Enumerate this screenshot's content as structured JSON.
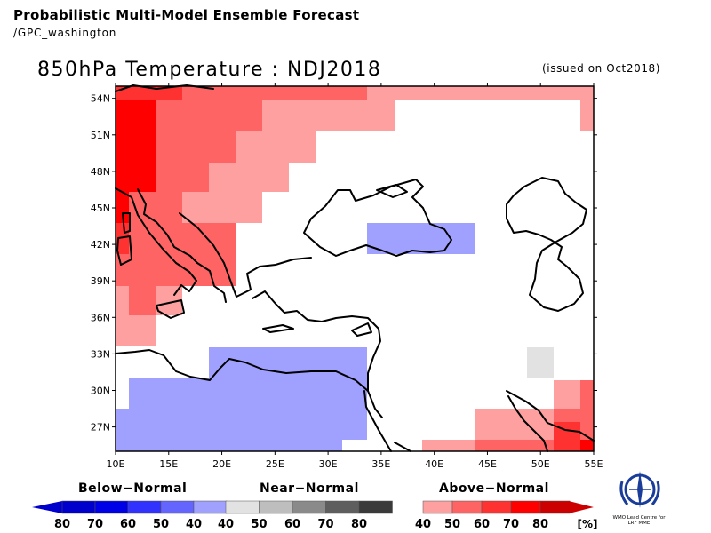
{
  "header": {
    "title": "Probabilistic Multi-Model Ensemble Forecast",
    "subtitle": "/GPC_washington"
  },
  "map": {
    "title": "850hPa Temperature : NDJ2018",
    "issued": "(issued on Oct2018)",
    "lat_labels": [
      "54N",
      "51N",
      "48N",
      "45N",
      "42N",
      "39N",
      "36N",
      "33N",
      "30N",
      "27N"
    ],
    "lon_labels": [
      "10E",
      "15E",
      "20E",
      "25E",
      "30E",
      "35E",
      "40E",
      "45E",
      "50E",
      "55E"
    ],
    "extent": {
      "lon": [
        10,
        55
      ],
      "lat": [
        25,
        55
      ]
    }
  },
  "legend": {
    "below": {
      "label": "Below−Normal",
      "ticks": [
        "80",
        "70",
        "60",
        "50",
        "40"
      ],
      "colors": [
        "#0000cc",
        "#0000e6",
        "#3232ff",
        "#6464ff",
        "#a0a0ff"
      ]
    },
    "near": {
      "label": "Near−Normal",
      "ticks": [
        "40",
        "50",
        "60",
        "70",
        "80"
      ],
      "colors": [
        "#e2e2e2",
        "#bebebe",
        "#8a8a8a",
        "#5e5e5e",
        "#3a3a3a"
      ]
    },
    "above": {
      "label": "Above−Normal",
      "ticks": [
        "40",
        "50",
        "60",
        "70",
        "80"
      ],
      "colors": [
        "#ffa0a0",
        "#ff6464",
        "#ff3232",
        "#ff0000",
        "#cc0000"
      ]
    },
    "unit": "[%]"
  },
  "logo": {
    "caption": "WMO Lead Centre for LRF MME"
  },
  "colors": {
    "above40": "#ffa0a0",
    "above50": "#ff6464",
    "above60": "#ff3232",
    "above70": "#ff0000",
    "below40": "#a0a0ff",
    "near40": "#e2e2e2"
  }
}
